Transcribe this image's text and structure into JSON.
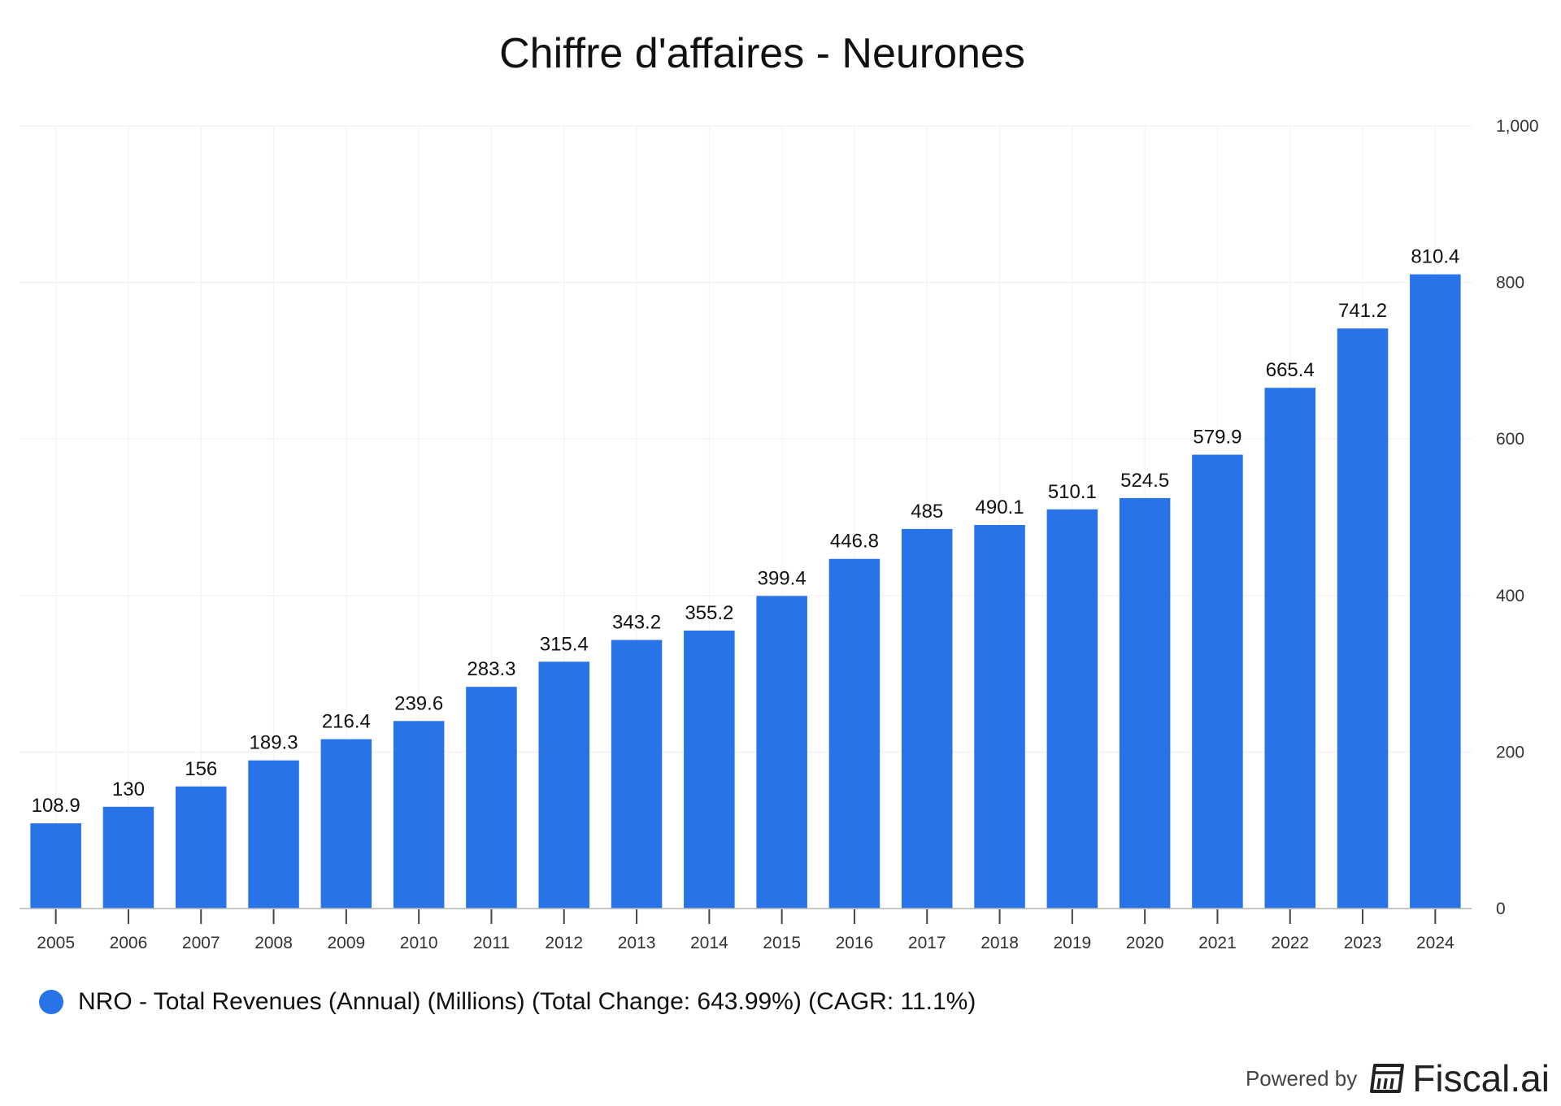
{
  "chart_data": {
    "type": "bar",
    "title": "Chiffre d'affaires - Neurones",
    "categories": [
      "2005",
      "2006",
      "2007",
      "2008",
      "2009",
      "2010",
      "2011",
      "2012",
      "2013",
      "2014",
      "2015",
      "2016",
      "2017",
      "2018",
      "2019",
      "2020",
      "2021",
      "2022",
      "2023",
      "2024"
    ],
    "series": [
      {
        "name": "NRO - Total Revenues (Annual) (Millions) (Total Change: 643.99%) (CAGR: 11.1%)",
        "values": [
          108.9,
          130,
          156,
          189.3,
          216.4,
          239.6,
          283.3,
          315.4,
          343.2,
          355.2,
          399.4,
          446.8,
          485,
          490.1,
          510.1,
          524.5,
          579.9,
          665.4,
          741.2,
          810.4
        ],
        "labels": [
          "108.9",
          "130",
          "156",
          "189.3",
          "216.4",
          "239.6",
          "283.3",
          "315.4",
          "343.2",
          "355.2",
          "399.4",
          "446.8",
          "485",
          "490.1",
          "510.1",
          "524.5",
          "579.9",
          "665.4",
          "741.2",
          "810.4"
        ]
      }
    ],
    "ylim": [
      0,
      1000
    ],
    "y_ticks": [
      0,
      200,
      400,
      600,
      800,
      1000
    ],
    "y_tick_labels": [
      "0",
      "200",
      "400",
      "600",
      "800",
      "1,000"
    ],
    "y_axis_position": "right",
    "grid": true,
    "legend_position": "bottom-left",
    "bar_color": "#2873E8"
  },
  "footer": {
    "powered_label": "Powered by",
    "brand": "Fiscal.ai",
    "brand_icon": "fiscal-logo-icon"
  }
}
